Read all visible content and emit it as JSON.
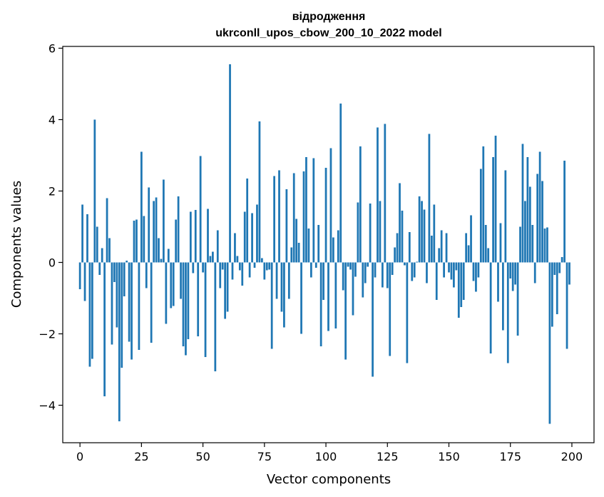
{
  "chart_data": {
    "type": "bar",
    "title": "відродження",
    "subtitle": "ukrconll_upos_cbow_200_10_2022 model",
    "xlabel": "Vector components",
    "ylabel": "Components values",
    "xlim": [
      -7,
      209
    ],
    "ylim": [
      -5.05,
      6.05
    ],
    "xticks": [
      0,
      25,
      50,
      75,
      100,
      125,
      150,
      175,
      200
    ],
    "yticks": [
      -4,
      -2,
      0,
      2,
      4,
      6
    ],
    "xtick_labels": [
      "0",
      "25",
      "50",
      "75",
      "100",
      "125",
      "150",
      "175",
      "200"
    ],
    "ytick_labels": [
      "−4",
      "−2",
      "0",
      "2",
      "4",
      "6"
    ],
    "bar_color": "#1f77b4",
    "grid": false,
    "legend": "none",
    "values": [
      -0.75,
      1.62,
      -1.08,
      1.35,
      -2.92,
      -2.7,
      4.0,
      1.0,
      -0.35,
      0.4,
      -3.75,
      1.8,
      0.68,
      -2.3,
      -0.55,
      -1.82,
      -4.45,
      -2.95,
      -0.95,
      0.05,
      -2.22,
      -2.72,
      1.17,
      1.2,
      -2.45,
      3.1,
      1.3,
      -0.72,
      2.1,
      -2.25,
      1.72,
      1.82,
      0.68,
      0.1,
      2.32,
      -1.72,
      0.38,
      -1.28,
      -1.22,
      1.2,
      1.85,
      -1.02,
      -2.35,
      -2.6,
      -2.15,
      1.42,
      -0.3,
      1.47,
      -2.07,
      2.98,
      -0.28,
      -2.65,
      1.5,
      0.18,
      0.3,
      -3.05,
      0.9,
      -0.72,
      -0.2,
      -1.58,
      -1.38,
      5.55,
      -0.48,
      0.82,
      0.18,
      -0.22,
      -0.65,
      1.42,
      2.35,
      -0.42,
      1.38,
      -0.15,
      1.62,
      3.95,
      0.12,
      -0.48,
      -0.22,
      -0.2,
      -2.42,
      2.42,
      -1.02,
      2.58,
      -1.38,
      -1.82,
      2.05,
      -1.02,
      0.42,
      2.5,
      1.22,
      0.55,
      -2.0,
      2.55,
      2.95,
      0.95,
      -0.42,
      2.92,
      -0.15,
      1.05,
      -2.35,
      -1.05,
      2.65,
      -1.92,
      3.2,
      0.7,
      -1.85,
      0.9,
      4.45,
      -0.78,
      -2.72,
      -0.12,
      -0.2,
      -1.48,
      -0.4,
      1.68,
      3.25,
      -0.98,
      -0.58,
      -0.12,
      1.65,
      -3.2,
      -0.42,
      3.78,
      1.72,
      -0.7,
      3.88,
      -0.72,
      -2.62,
      -0.35,
      0.42,
      0.82,
      2.22,
      1.45,
      -0.08,
      -2.82,
      0.85,
      -0.52,
      -0.42,
      0.02,
      1.85,
      1.72,
      1.48,
      -0.58,
      3.6,
      0.75,
      1.62,
      -1.05,
      0.4,
      0.9,
      -0.42,
      0.82,
      -0.28,
      -0.48,
      -0.7,
      -0.22,
      -1.55,
      -1.25,
      -1.05,
      0.82,
      0.48,
      1.32,
      -0.52,
      -0.82,
      -0.42,
      2.62,
      3.25,
      1.05,
      0.4,
      -2.55,
      2.95,
      3.55,
      -1.1,
      1.1,
      -1.9,
      2.58,
      -2.82,
      -0.45,
      -0.8,
      -0.62,
      -2.05,
      1.0,
      3.32,
      1.72,
      2.95,
      2.12,
      1.05,
      -0.58,
      2.48,
      3.1,
      2.28,
      0.95,
      0.98,
      -4.52,
      -1.8,
      -0.35,
      -1.45,
      -0.3,
      0.15,
      2.85,
      -2.42,
      -0.62
    ]
  }
}
